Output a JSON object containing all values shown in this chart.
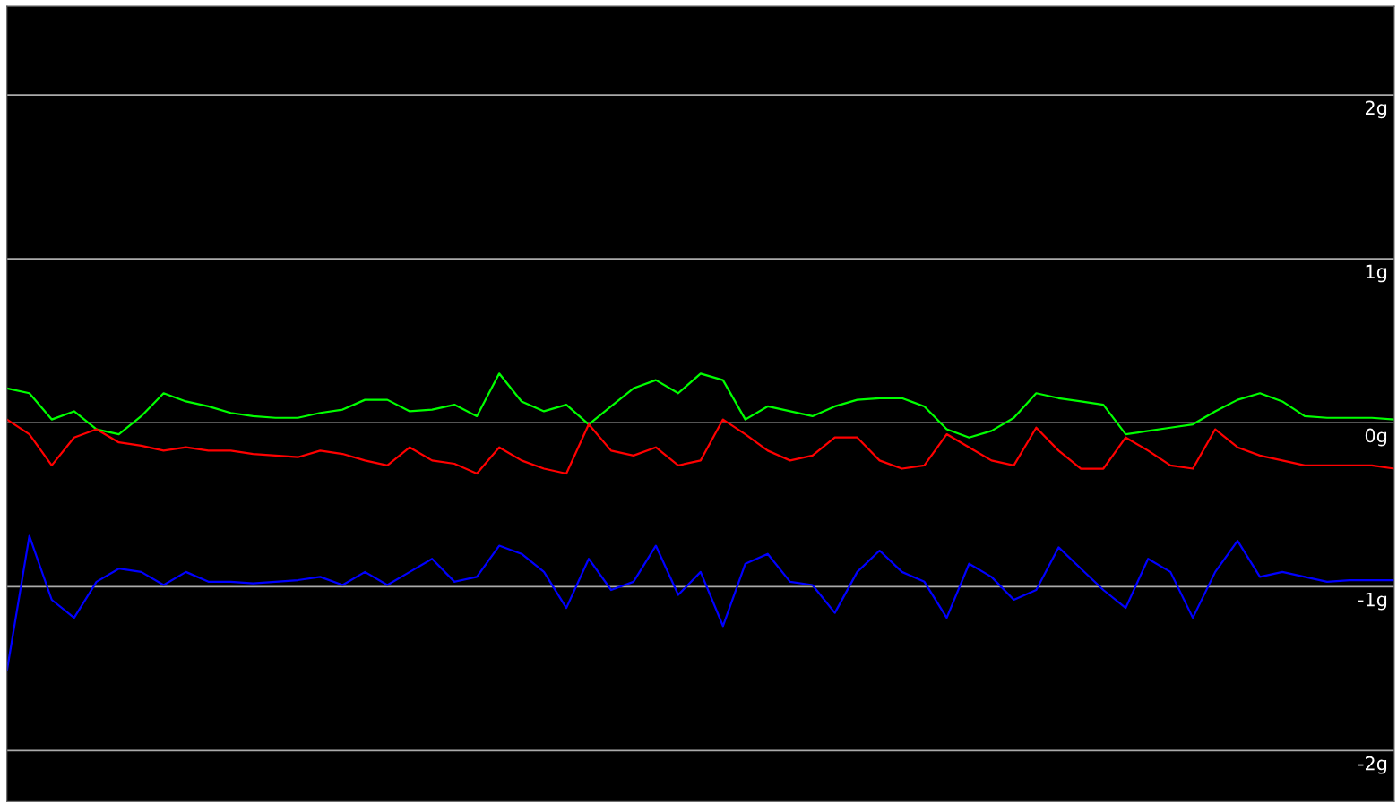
{
  "chart_data": {
    "type": "line",
    "categories": [
      null,
      null,
      null,
      null,
      null,
      null,
      null,
      null,
      null,
      null,
      null,
      null,
      null,
      null,
      null,
      null,
      null,
      null,
      null,
      null,
      null,
      null,
      null,
      null,
      null,
      null,
      null,
      null,
      null,
      null,
      null,
      null,
      null,
      null,
      null,
      null,
      null,
      null,
      null,
      null,
      null,
      null,
      null,
      null,
      null,
      null,
      null,
      null,
      null,
      null,
      null,
      null,
      null,
      null,
      null,
      null,
      null,
      null,
      null,
      null,
      null,
      null,
      null
    ],
    "series": [
      {
        "color": "#00ff00",
        "values": [
          0.21,
          0.18,
          0.02,
          0.07,
          -0.04,
          -0.07,
          0.04,
          0.18,
          0.13,
          0.1,
          0.06,
          0.04,
          0.03,
          0.03,
          0.06,
          0.08,
          0.14,
          0.14,
          0.07,
          0.08,
          0.11,
          0.04,
          0.3,
          0.13,
          0.07,
          0.11,
          -0.01,
          0.1,
          0.21,
          0.26,
          0.18,
          0.3,
          0.26,
          0.02,
          0.1,
          0.07,
          0.04,
          0.1,
          0.14,
          0.15,
          0.15,
          0.1,
          -0.04,
          -0.09,
          -0.05,
          0.03,
          0.18,
          0.15,
          0.13,
          0.11,
          -0.07,
          -0.05,
          -0.03,
          -0.01,
          0.07,
          0.14,
          0.18,
          0.13,
          0.04,
          0.03,
          0.03,
          0.03,
          0.02
        ]
      },
      {
        "color": "#ff0000",
        "values": [
          0.02,
          -0.07,
          -0.26,
          -0.09,
          -0.04,
          -0.12,
          -0.14,
          -0.17,
          -0.15,
          -0.17,
          -0.17,
          -0.19,
          -0.2,
          -0.21,
          -0.17,
          -0.19,
          -0.23,
          -0.26,
          -0.15,
          -0.23,
          -0.25,
          -0.31,
          -0.15,
          -0.23,
          -0.28,
          -0.31,
          -0.01,
          -0.17,
          -0.2,
          -0.15,
          -0.26,
          -0.23,
          0.02,
          -0.07,
          -0.17,
          -0.23,
          -0.2,
          -0.09,
          -0.09,
          -0.23,
          -0.28,
          -0.26,
          -0.07,
          -0.15,
          -0.23,
          -0.26,
          -0.03,
          -0.17,
          -0.28,
          -0.28,
          -0.09,
          -0.17,
          -0.26,
          -0.28,
          -0.04,
          -0.15,
          -0.2,
          -0.23,
          -0.26,
          -0.26,
          -0.26,
          -0.26,
          -0.28
        ]
      },
      {
        "color": "#0000ff",
        "values": [
          -1.51,
          -0.69,
          -1.08,
          -1.19,
          -0.97,
          -0.89,
          -0.91,
          -0.99,
          -0.91,
          -0.97,
          -0.97,
          -0.98,
          -0.97,
          -0.96,
          -0.94,
          -0.99,
          -0.91,
          -0.99,
          -0.91,
          -0.83,
          -0.97,
          -0.94,
          -0.75,
          -0.8,
          -0.91,
          -1.13,
          -0.83,
          -1.02,
          -0.97,
          -0.75,
          -1.05,
          -0.91,
          -1.24,
          -0.86,
          -0.8,
          -0.97,
          -0.99,
          -1.16,
          -0.91,
          -0.78,
          -0.91,
          -0.97,
          -1.19,
          -0.86,
          -0.94,
          -1.08,
          -1.02,
          -0.76,
          -0.89,
          -1.02,
          -1.13,
          -0.83,
          -0.91,
          -1.19,
          -0.91,
          -0.72,
          -0.94,
          -0.91,
          -0.94,
          -0.97,
          -0.96,
          -0.96,
          -0.96
        ]
      }
    ],
    "ylim": [
      -2.31,
      2.54
    ],
    "yticks": [
      {
        "value": 2,
        "label": "2g"
      },
      {
        "value": 1,
        "label": "1g"
      },
      {
        "value": 0,
        "label": "0g"
      },
      {
        "value": -1,
        "label": "-1g"
      },
      {
        "value": -2,
        "label": "-2g"
      }
    ],
    "grid": "y",
    "tick_labels": "y",
    "line_style": "solid"
  }
}
